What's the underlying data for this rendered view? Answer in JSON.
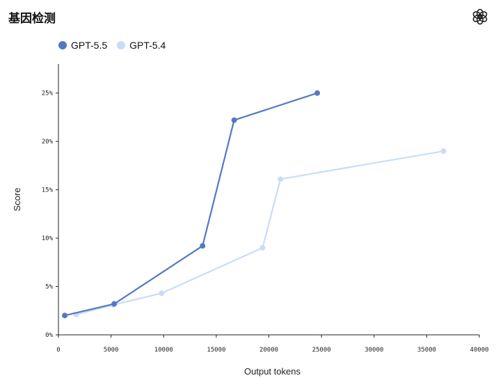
{
  "header": {
    "title": "基因检测",
    "logo_icon": "openai-logo-icon"
  },
  "chart_data": {
    "type": "line",
    "xlabel": "Output tokens",
    "ylabel": "Score",
    "xlim": [
      0,
      40000
    ],
    "ylim": [
      0,
      28
    ],
    "x_ticks": [
      0,
      5000,
      10000,
      15000,
      20000,
      25000,
      30000,
      35000,
      40000
    ],
    "y_ticks": [
      0,
      5,
      10,
      15,
      20,
      25
    ],
    "y_tick_labels": [
      "0%",
      "5%",
      "10%",
      "15%",
      "20%",
      "25%"
    ],
    "legend_position": "top-left",
    "grid": false,
    "series": [
      {
        "name": "GPT-5.5",
        "color": "#5478c4",
        "points": [
          [
            600,
            2.0
          ],
          [
            5300,
            3.2
          ],
          [
            13700,
            9.2
          ],
          [
            16700,
            22.2
          ],
          [
            24600,
            25.0
          ]
        ]
      },
      {
        "name": "GPT-5.4",
        "color": "#c9dcf6",
        "points": [
          [
            1700,
            2.1
          ],
          [
            5200,
            3.1
          ],
          [
            9800,
            4.3
          ],
          [
            19400,
            9.0
          ],
          [
            21100,
            16.1
          ],
          [
            36600,
            19.0
          ]
        ]
      }
    ]
  }
}
